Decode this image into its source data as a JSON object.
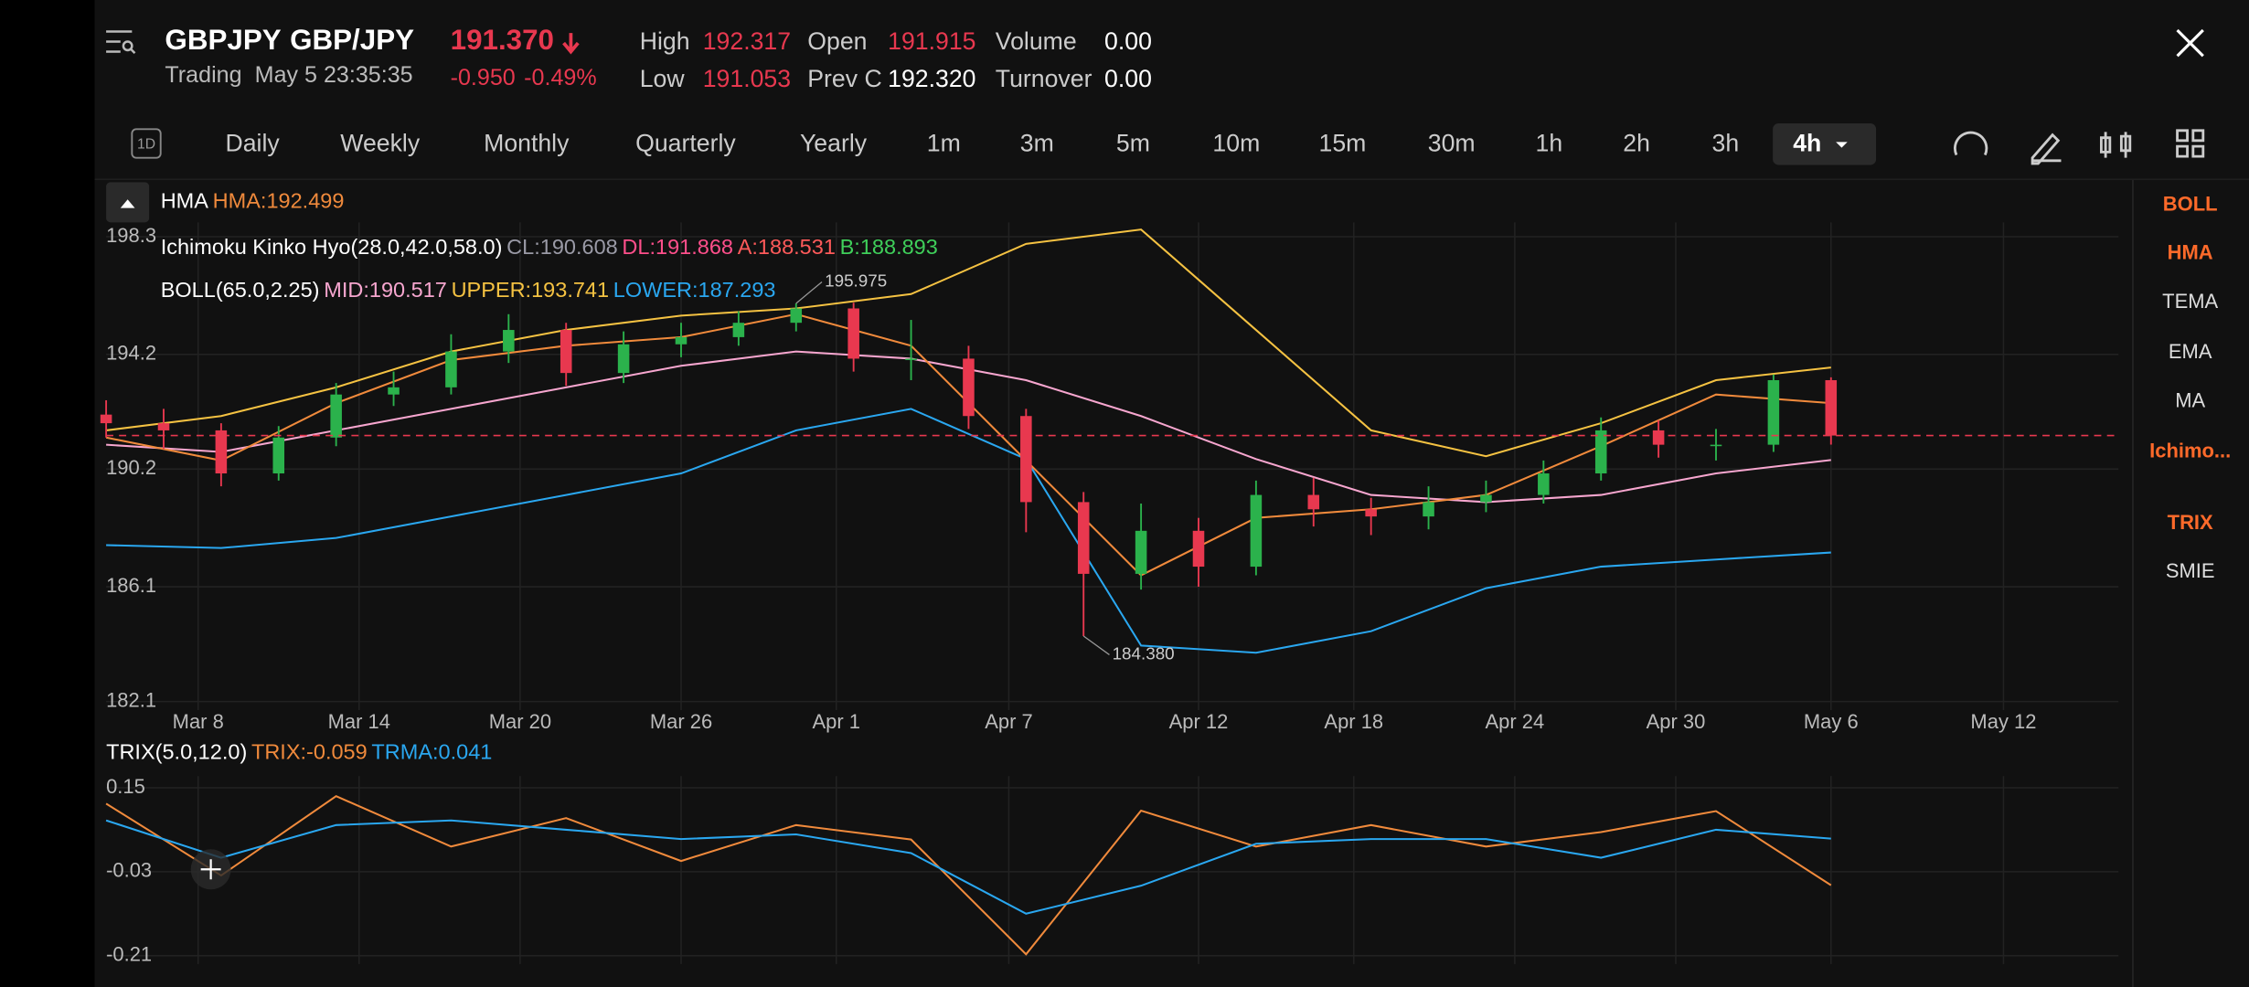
{
  "header": {
    "symbol": "GBPJPY",
    "pair": "GBP/JPY",
    "status": "Trading",
    "time": "May 5 23:35:35",
    "price": "191.370",
    "change": "-0.950",
    "change_pct": "-0.49%",
    "stats": [
      {
        "label": "High",
        "value": "192.317",
        "color": "#e8384f"
      },
      {
        "label": "Low",
        "value": "191.053",
        "color": "#e8384f"
      },
      {
        "label": "Open",
        "value": "191.915",
        "color": "#e8384f"
      },
      {
        "label": "Prev C",
        "value": "192.320",
        "color": "#ffffff"
      },
      {
        "label": "Volume",
        "value": "0.00",
        "color": "#ffffff"
      },
      {
        "label": "Turnover",
        "value": "0.00",
        "color": "#ffffff"
      }
    ]
  },
  "tabs": {
    "icon": "1D",
    "items": [
      {
        "text": "Daily",
        "selected": false
      },
      {
        "text": "Weekly",
        "selected": false
      },
      {
        "text": "Monthly",
        "selected": false
      },
      {
        "text": "Quarterly",
        "selected": false
      },
      {
        "text": "Yearly",
        "selected": false
      },
      {
        "text": "1m",
        "selected": false
      },
      {
        "text": "3m",
        "selected": false
      },
      {
        "text": "5m",
        "selected": false
      },
      {
        "text": "10m",
        "selected": false
      },
      {
        "text": "15m",
        "selected": false
      },
      {
        "text": "30m",
        "selected": false
      },
      {
        "text": "1h",
        "selected": false
      },
      {
        "text": "2h",
        "selected": false
      },
      {
        "text": "3h",
        "selected": false
      },
      {
        "text": "4h",
        "selected": true
      }
    ]
  },
  "side_list": [
    {
      "text": "BOLL",
      "active": true
    },
    {
      "text": "HMA",
      "active": true
    },
    {
      "text": "TEMA",
      "active": false
    },
    {
      "text": "EMA",
      "active": false
    },
    {
      "text": "MA",
      "active": false
    },
    {
      "text": "Ichimo...",
      "active": true
    },
    {
      "text": "TRIX",
      "active": true
    },
    {
      "text": "SMIE",
      "active": false
    }
  ],
  "chart_data": {
    "type": "candlestick",
    "legends": {
      "hma": [
        {
          "text": "HMA",
          "color": "#ffffff"
        },
        {
          "text": "HMA:192.499",
          "color": "#f08a3c"
        }
      ],
      "ichimoku": [
        {
          "text": "Ichimoku Kinko Hyo(28.0,42.0,58.0)",
          "color": "#ffffff"
        },
        {
          "text": "CL:190.608",
          "color": "#9a9aa6"
        },
        {
          "text": "DL:191.868",
          "color": "#ff4f8b"
        },
        {
          "text": "A:188.531",
          "color": "#ff5a5a"
        },
        {
          "text": "B:188.893",
          "color": "#3fcf5a"
        }
      ],
      "boll": [
        {
          "text": "BOLL(65.0,2.25)",
          "color": "#ffffff"
        },
        {
          "text": "MID:190.517",
          "color": "#f7a6cf"
        },
        {
          "text": "UPPER:193.741",
          "color": "#f5c242"
        },
        {
          "text": "LOWER:187.293",
          "color": "#2aa7f0"
        }
      ]
    },
    "xlim": [
      0,
      350
    ],
    "xticks": [
      {
        "value": 16,
        "label": "Mar 8"
      },
      {
        "value": 44,
        "label": "Mar 14"
      },
      {
        "value": 72,
        "label": "Mar 20"
      },
      {
        "value": 100,
        "label": "Mar 26"
      },
      {
        "value": 127,
        "label": "Apr 1"
      },
      {
        "value": 157,
        "label": "Apr 7"
      },
      {
        "value": 190,
        "label": "Apr 12"
      },
      {
        "value": 217,
        "label": "Apr 18"
      },
      {
        "value": 245,
        "label": "Apr 24"
      },
      {
        "value": 273,
        "label": "Apr 30"
      },
      {
        "value": 300,
        "label": "May 6"
      },
      {
        "value": 330,
        "label": "May 12"
      }
    ],
    "ylim": [
      181.8,
      198.8
    ],
    "yticks": [
      198.3,
      194.2,
      190.2,
      186.1,
      182.1
    ],
    "grid": true,
    "up_color": "#2bb24c",
    "down_color": "#e8384f",
    "candles": {
      "x": [
        0,
        10,
        20,
        30,
        40,
        50,
        60,
        70,
        80,
        90,
        100,
        110,
        120,
        130,
        140,
        150,
        160,
        170,
        180,
        190,
        200,
        210,
        220,
        230,
        240,
        250,
        260,
        270,
        280,
        290,
        300
      ],
      "open": [
        192.1,
        191.8,
        191.55,
        190.05,
        191.3,
        192.8,
        193.05,
        194.3,
        195.05,
        193.55,
        194.55,
        194.8,
        195.3,
        195.8,
        194.05,
        194.05,
        192.05,
        189.05,
        186.55,
        188.05,
        186.8,
        189.3,
        188.8,
        188.55,
        189.05,
        189.3,
        190.05,
        191.55,
        191.05,
        191.05,
        193.3
      ],
      "high": [
        192.6,
        192.3,
        191.8,
        191.7,
        193.2,
        193.6,
        194.9,
        195.6,
        195.3,
        195.0,
        195.3,
        195.7,
        195.975,
        196.0,
        195.4,
        194.5,
        192.3,
        189.4,
        189.0,
        188.5,
        189.8,
        189.9,
        189.2,
        189.6,
        189.8,
        190.5,
        192.0,
        191.9,
        191.6,
        193.5,
        193.4
      ],
      "low": [
        191.3,
        190.9,
        189.6,
        189.8,
        191.0,
        192.4,
        192.8,
        193.9,
        193.1,
        193.2,
        194.1,
        194.5,
        195.0,
        193.6,
        193.3,
        191.6,
        188.0,
        184.38,
        186.0,
        186.1,
        186.5,
        188.2,
        187.9,
        188.1,
        188.7,
        189.0,
        189.8,
        190.6,
        190.5,
        190.8,
        191.053
      ],
      "close": [
        191.8,
        191.55,
        190.05,
        191.3,
        192.8,
        193.05,
        194.3,
        195.05,
        193.55,
        194.55,
        194.8,
        195.3,
        195.8,
        194.05,
        194.05,
        192.05,
        189.05,
        186.55,
        188.05,
        186.8,
        189.3,
        188.8,
        188.55,
        189.05,
        189.3,
        190.05,
        191.55,
        191.05,
        191.05,
        193.3,
        191.37
      ]
    },
    "annotations": [
      {
        "x": 120,
        "value": 195.975
      },
      {
        "x": 170,
        "value": 184.38,
        "label": "184.380"
      }
    ],
    "line_x": [
      0,
      20,
      40,
      60,
      80,
      100,
      120,
      140,
      160,
      180,
      200,
      220,
      240,
      260,
      280,
      300
    ],
    "lines": [
      {
        "color": "#f5c242",
        "values": [
          191.55,
          192.05,
          193.05,
          194.3,
          195.05,
          195.55,
          195.8,
          196.3,
          198.05,
          198.55,
          195.05,
          191.55,
          190.65,
          191.8,
          193.3,
          193.741
        ]
      },
      {
        "color": "#f7a6cf",
        "values": [
          191.05,
          190.8,
          191.55,
          192.3,
          193.05,
          193.8,
          194.3,
          194.05,
          193.3,
          192.05,
          190.55,
          189.3,
          189.05,
          189.3,
          190.05,
          190.517
        ]
      },
      {
        "color": "#2aa7f0",
        "values": [
          187.55,
          187.45,
          187.8,
          188.55,
          189.3,
          190.05,
          191.55,
          192.3,
          190.55,
          184.05,
          183.8,
          184.55,
          186.05,
          186.8,
          187.05,
          187.293
        ]
      },
      {
        "color": "#f08a3c",
        "values": [
          191.3,
          190.5,
          192.5,
          194.0,
          194.5,
          194.8,
          195.6,
          194.5,
          190.5,
          186.5,
          188.5,
          188.8,
          189.3,
          191.0,
          192.8,
          192.499
        ]
      }
    ],
    "price_line_color": "#e8384f",
    "trix": {
      "legend": [
        {
          "text": "TRIX(5.0,12.0)",
          "color": "#ffffff"
        },
        {
          "text": "TRIX:-0.059",
          "color": "#f08a3c"
        },
        {
          "text": "TRMA:0.041",
          "color": "#2aa7f0"
        }
      ],
      "ylim": [
        -0.228,
        0.175
      ],
      "yticks": [
        0.15,
        -0.03,
        -0.21
      ],
      "series": [
        {
          "color": "#f08a3c",
          "values": [
            0.116,
            -0.038,
            0.132,
            0.024,
            0.085,
            -0.007,
            0.07,
            0.039,
            -0.207,
            0.101,
            0.024,
            0.07,
            0.024,
            0.055,
            0.1,
            -0.059
          ]
        },
        {
          "color": "#2aa7f0",
          "values": [
            0.08,
            0.0,
            0.07,
            0.08,
            0.06,
            0.04,
            0.05,
            0.01,
            -0.12,
            -0.06,
            0.03,
            0.04,
            0.04,
            0.0,
            0.06,
            0.041
          ]
        }
      ]
    }
  }
}
